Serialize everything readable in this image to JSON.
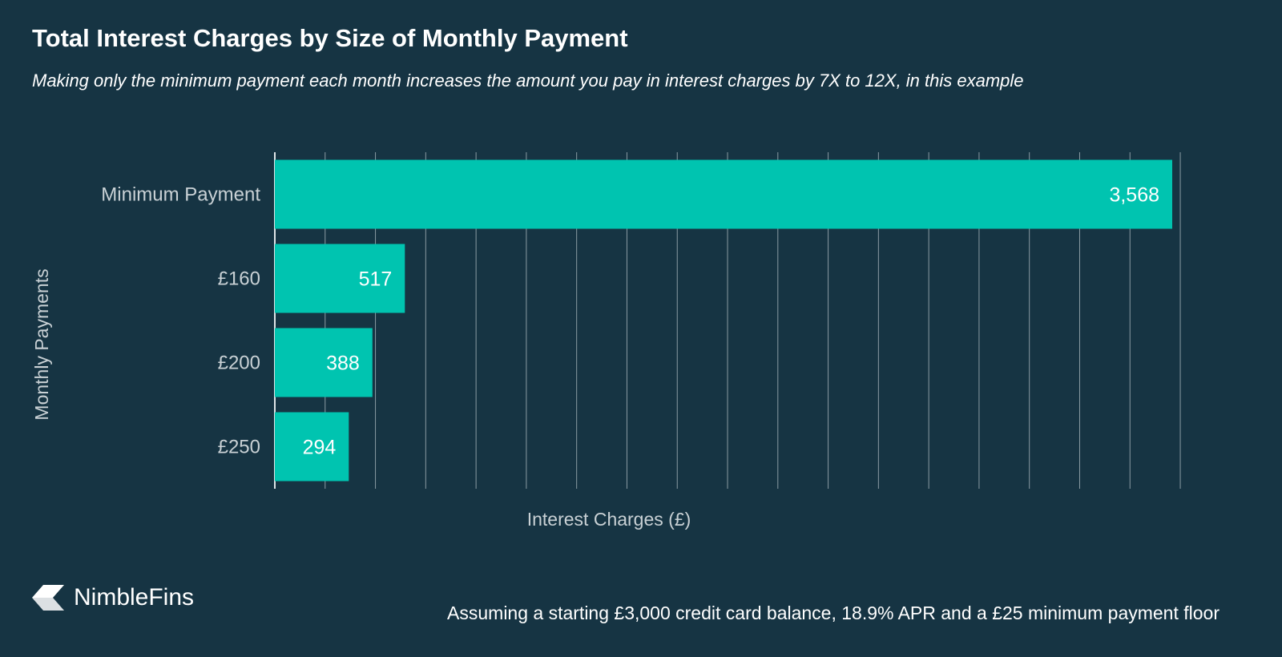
{
  "title": "Total Interest Charges by Size of Monthly Payment",
  "subtitle": "Making only the minimum payment each month increases the amount you pay in interest charges by 7X to 12X, in this example",
  "brand": "NimbleFins",
  "footnote": "Assuming a starting £3,000 credit card balance, 18.9% APR and a £25 minimum payment floor",
  "colors": {
    "background": "#163443",
    "bar": "#00c4b0",
    "grid": "#8a9ba3",
    "axis_text": "#c9d1d5",
    "label_text": "#ffffff"
  },
  "chart_data": {
    "type": "bar",
    "orientation": "horizontal",
    "categories": [
      "Minimum Payment",
      "£160",
      "£200",
      "£250"
    ],
    "values": [
      3568,
      517,
      388,
      294
    ],
    "value_labels": [
      "3,568",
      "517",
      "388",
      "294"
    ],
    "xlabel": "Interest Charges (£)",
    "ylabel": "Monthly Payments",
    "xlim": [
      0,
      3600
    ],
    "grid_step": 200,
    "grid": true,
    "x_tick_labels_shown": false
  }
}
